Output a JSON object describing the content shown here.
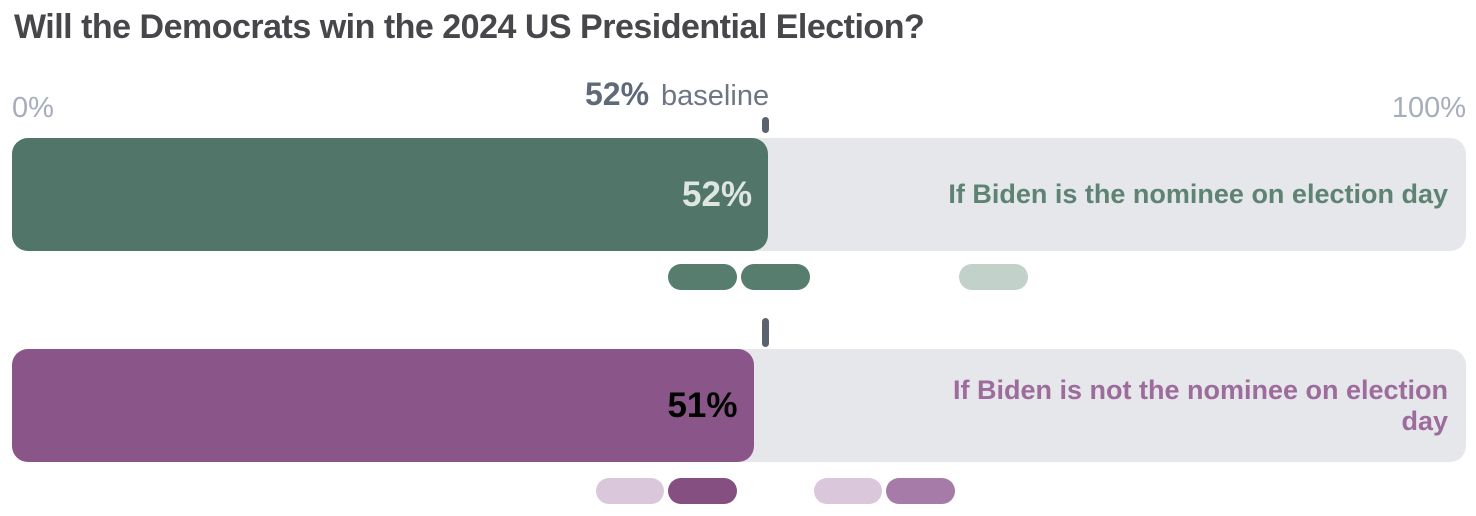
{
  "title": "Will the Democrats win the 2024 US Presidential Election?",
  "axis": {
    "min_label": "0%",
    "max_label": "100%"
  },
  "baseline": {
    "value": "52%",
    "caption": "baseline",
    "pct": 52
  },
  "colors": {
    "background": "#ffffff",
    "title_text": "#47474b",
    "axis_label_text": "#a7adbb",
    "baseline_value_text": "#5f6a79",
    "baseline_caption_text": "#6e7685",
    "baseline_tick": "#5b6370",
    "bar_track": "#e5e7ea",
    "green_bar": "#527569",
    "purple_bar": "#8a5689"
  },
  "chart_data": {
    "type": "bar",
    "title": "Will the Democrats win the 2024 US Presidential Election?",
    "xlim": [
      0,
      100
    ],
    "tick_labels": [
      "0%",
      "100%"
    ],
    "baseline_pct": 52,
    "baseline_label": "52% baseline",
    "grid": false,
    "legend": false,
    "bars": [
      {
        "label": "If Biden is the nominee on election day",
        "value": 52,
        "value_label": "52%",
        "bar_color": "#527569",
        "value_text_color": "#dde6e1",
        "label_text_color": "#5e8372",
        "markers": [
          {
            "bucket_start_pct": 45,
            "bucket_end_pct": 50,
            "color": "#567d6e"
          },
          {
            "bucket_start_pct": 50,
            "bucket_end_pct": 55,
            "color": "#567d6e"
          },
          {
            "bucket_start_pct": 65,
            "bucket_end_pct": 70,
            "color": "#c2d1c9"
          }
        ]
      },
      {
        "label": "If Biden is not the nominee on election day",
        "value": 51,
        "value_label": "51%",
        "bar_color": "#8a5689",
        "value_text_color": "#e9dceа",
        "label_text_color": "#9d6b9c",
        "markers": [
          {
            "bucket_start_pct": 40,
            "bucket_end_pct": 45,
            "color": "#dbc7dc"
          },
          {
            "bucket_start_pct": 45,
            "bucket_end_pct": 50,
            "color": "#864f81"
          },
          {
            "bucket_start_pct": 55,
            "bucket_end_pct": 60,
            "color": "#dbc7dc"
          },
          {
            "bucket_start_pct": 60,
            "bucket_end_pct": 65,
            "color": "#a77ba7"
          }
        ]
      }
    ]
  }
}
